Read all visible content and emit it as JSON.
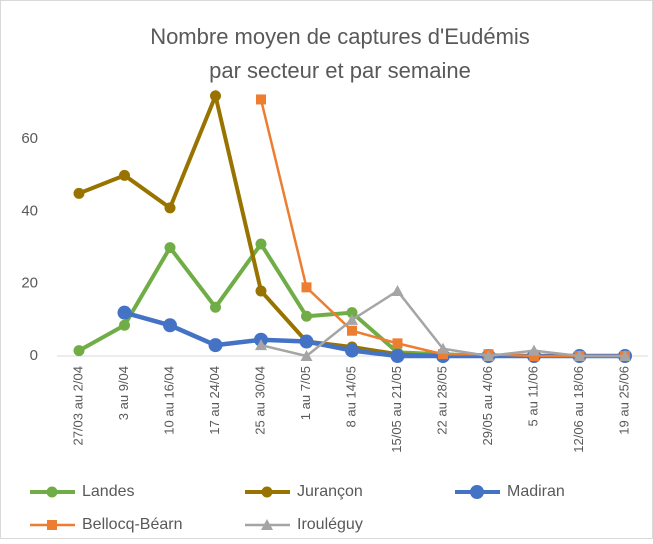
{
  "chart_data": {
    "type": "line",
    "title": [
      "Nombre moyen de captures d'Eudémis",
      "par secteur et par semaine"
    ],
    "categories": [
      "27/03 au 2/04",
      "3 au 9/04",
      "10 au 16/04",
      "17 au 24/04",
      "25 au 30/04",
      "1 au 7/05",
      "8 au 14/05",
      "15/05 au 21/05",
      "22 au 28/05",
      "29/05 au 4/06",
      "5 au 11/06",
      "12/06 au 18/06",
      "19 au 25/06"
    ],
    "series": [
      {
        "name": "Landes",
        "color": "#70ad47",
        "marker": "circle",
        "values": [
          1.5,
          8.5,
          30,
          13.5,
          31,
          11,
          12,
          1,
          0.5,
          0,
          0,
          0,
          0
        ]
      },
      {
        "name": "Jurançon",
        "color": "#997300",
        "marker": "circle",
        "values": [
          45,
          50,
          41,
          72,
          18,
          4,
          2.5,
          0.5,
          0,
          0,
          0,
          0,
          0
        ]
      },
      {
        "name": "Madiran",
        "color": "#4472c4",
        "marker": "circle",
        "values": [
          null,
          12,
          8.5,
          3,
          4.5,
          4,
          1.5,
          0,
          0,
          0,
          0,
          0,
          0
        ]
      },
      {
        "name": "Bellocq-Béarn",
        "color": "#ed7d31",
        "marker": "square",
        "values": [
          null,
          null,
          null,
          null,
          71,
          19,
          7,
          3.5,
          0.5,
          0.5,
          0,
          0,
          0
        ]
      },
      {
        "name": "Irouléguy",
        "color": "#a5a5a5",
        "marker": "triangle",
        "values": [
          null,
          null,
          null,
          null,
          3,
          0,
          10,
          18,
          2,
          0,
          1.5,
          0,
          0
        ]
      }
    ],
    "ylim": [
      0,
      75
    ],
    "yticks": [
      0,
      20,
      40,
      60
    ],
    "grid": false
  }
}
